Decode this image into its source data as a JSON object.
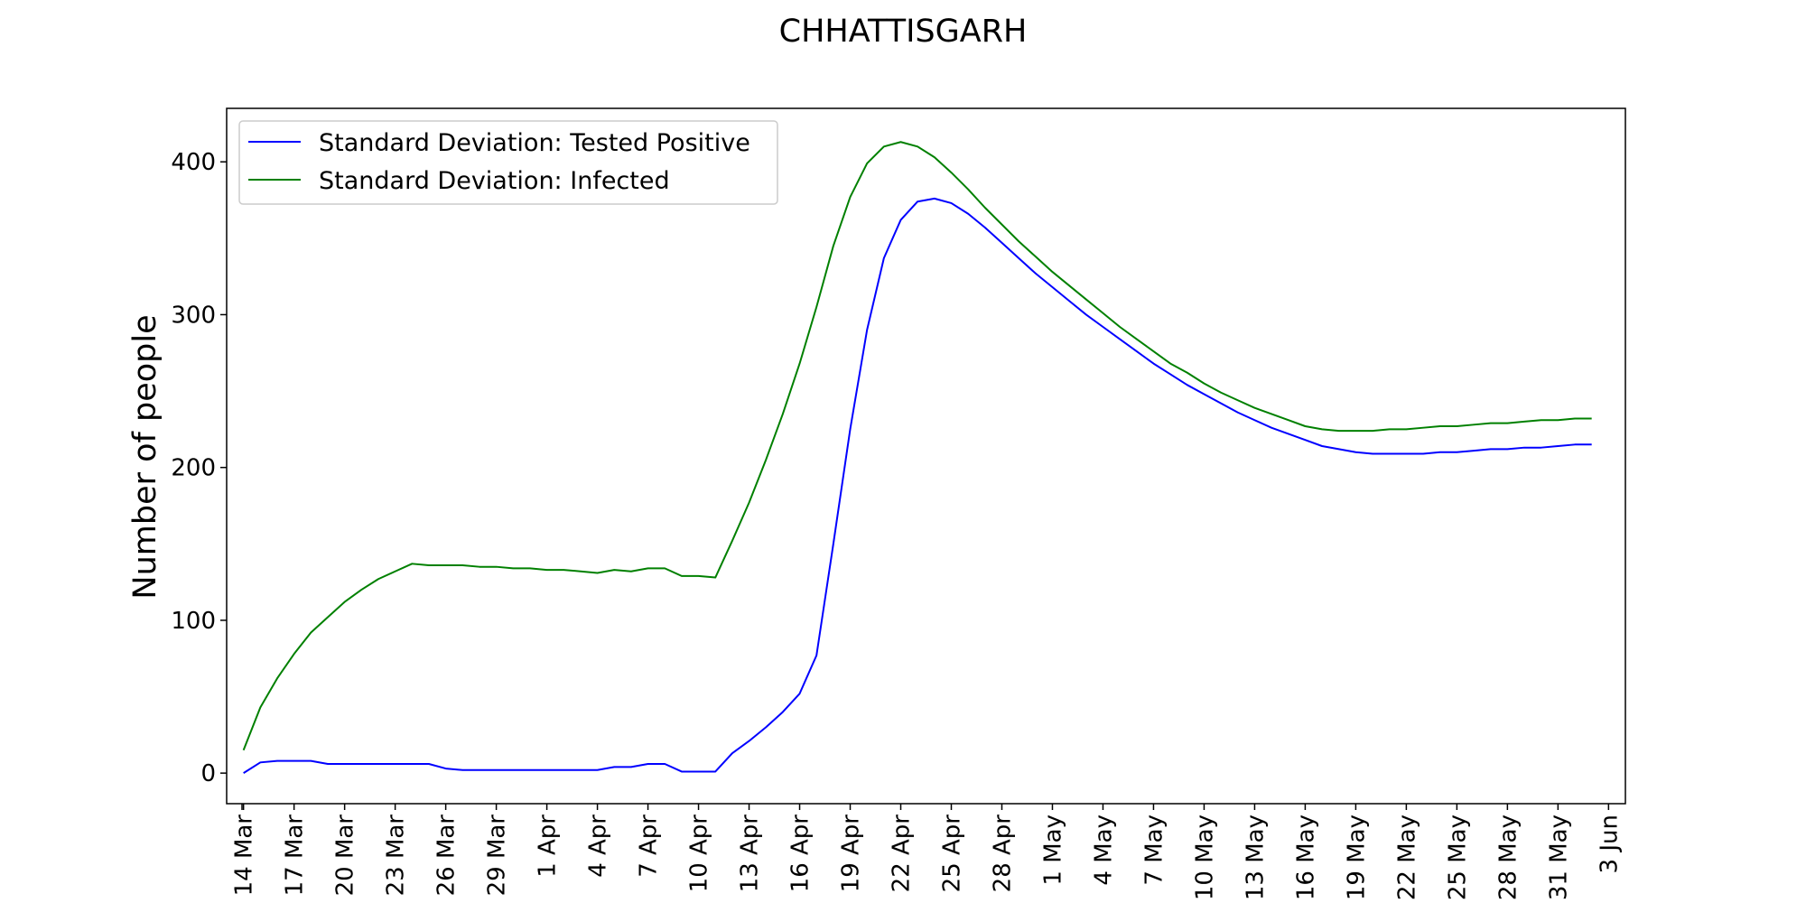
{
  "chart_data": {
    "type": "line",
    "title": "CHHATTISGARH",
    "xlabel": "",
    "ylabel": "Number of people",
    "x_start": "13 Mar",
    "x_end": "4 Jun",
    "ylim": [
      -20,
      435
    ],
    "grid": false,
    "legend_position": "top-left",
    "x_ticks": [
      "14 Mar",
      "17 Mar",
      "20 Mar",
      "23 Mar",
      "26 Mar",
      "29 Mar",
      "1 Apr",
      "4 Apr",
      "7 Apr",
      "10 Apr",
      "13 Apr",
      "16 Apr",
      "19 Apr",
      "22 Apr",
      "25 Apr",
      "28 Apr",
      "1 May",
      "4 May",
      "7 May",
      "10 May",
      "13 May",
      "16 May",
      "19 May",
      "22 May",
      "25 May",
      "28 May",
      "31 May",
      "3 Jun"
    ],
    "y_ticks": [
      0,
      100,
      200,
      300,
      400
    ],
    "series": [
      {
        "name": "Standard Deviation: Tested Positive",
        "color": "#0000ff",
        "points": [
          [
            "14 Mar",
            0
          ],
          [
            "15 Mar",
            7
          ],
          [
            "16 Mar",
            8
          ],
          [
            "17 Mar",
            8
          ],
          [
            "18 Mar",
            8
          ],
          [
            "19 Mar",
            6
          ],
          [
            "20 Mar",
            6
          ],
          [
            "21 Mar",
            6
          ],
          [
            "22 Mar",
            6
          ],
          [
            "23 Mar",
            6
          ],
          [
            "24 Mar",
            6
          ],
          [
            "25 Mar",
            6
          ],
          [
            "26 Mar",
            3
          ],
          [
            "27 Mar",
            2
          ],
          [
            "28 Mar",
            2
          ],
          [
            "29 Mar",
            2
          ],
          [
            "30 Mar",
            2
          ],
          [
            "31 Mar",
            2
          ],
          [
            "1 Apr",
            2
          ],
          [
            "2 Apr",
            2
          ],
          [
            "3 Apr",
            2
          ],
          [
            "4 Apr",
            2
          ],
          [
            "5 Apr",
            4
          ],
          [
            "6 Apr",
            4
          ],
          [
            "7 Apr",
            6
          ],
          [
            "8 Apr",
            6
          ],
          [
            "9 Apr",
            1
          ],
          [
            "10 Apr",
            1
          ],
          [
            "11 Apr",
            1
          ],
          [
            "12 Apr",
            13
          ],
          [
            "13 Apr",
            21
          ],
          [
            "14 Apr",
            30
          ],
          [
            "15 Apr",
            40
          ],
          [
            "16 Apr",
            52
          ],
          [
            "17 Apr",
            77
          ],
          [
            "18 Apr",
            150
          ],
          [
            "19 Apr",
            225
          ],
          [
            "20 Apr",
            290
          ],
          [
            "21 Apr",
            337
          ],
          [
            "22 Apr",
            362
          ],
          [
            "23 Apr",
            374
          ],
          [
            "24 Apr",
            376
          ],
          [
            "25 Apr",
            373
          ],
          [
            "26 Apr",
            366
          ],
          [
            "27 Apr",
            357
          ],
          [
            "28 Apr",
            347
          ],
          [
            "29 Apr",
            337
          ],
          [
            "30 Apr",
            327
          ],
          [
            "1 May",
            318
          ],
          [
            "2 May",
            309
          ],
          [
            "3 May",
            300
          ],
          [
            "4 May",
            292
          ],
          [
            "5 May",
            284
          ],
          [
            "6 May",
            276
          ],
          [
            "7 May",
            268
          ],
          [
            "8 May",
            261
          ],
          [
            "9 May",
            254
          ],
          [
            "10 May",
            248
          ],
          [
            "11 May",
            242
          ],
          [
            "12 May",
            236
          ],
          [
            "13 May",
            231
          ],
          [
            "14 May",
            226
          ],
          [
            "15 May",
            222
          ],
          [
            "16 May",
            218
          ],
          [
            "17 May",
            214
          ],
          [
            "18 May",
            212
          ],
          [
            "19 May",
            210
          ],
          [
            "20 May",
            209
          ],
          [
            "21 May",
            209
          ],
          [
            "22 May",
            209
          ],
          [
            "23 May",
            209
          ],
          [
            "24 May",
            210
          ],
          [
            "25 May",
            210
          ],
          [
            "26 May",
            211
          ],
          [
            "27 May",
            212
          ],
          [
            "28 May",
            212
          ],
          [
            "29 May",
            213
          ],
          [
            "30 May",
            213
          ],
          [
            "31 May",
            214
          ],
          [
            "1 Jun",
            215
          ],
          [
            "2 Jun",
            215
          ]
        ]
      },
      {
        "name": "Standard Deviation: Infected",
        "color": "#008000",
        "points": [
          [
            "14 Mar",
            15
          ],
          [
            "15 Mar",
            43
          ],
          [
            "16 Mar",
            62
          ],
          [
            "17 Mar",
            78
          ],
          [
            "18 Mar",
            92
          ],
          [
            "19 Mar",
            102
          ],
          [
            "20 Mar",
            112
          ],
          [
            "21 Mar",
            120
          ],
          [
            "22 Mar",
            127
          ],
          [
            "23 Mar",
            132
          ],
          [
            "24 Mar",
            137
          ],
          [
            "25 Mar",
            136
          ],
          [
            "26 Mar",
            136
          ],
          [
            "27 Mar",
            136
          ],
          [
            "28 Mar",
            135
          ],
          [
            "29 Mar",
            135
          ],
          [
            "30 Mar",
            134
          ],
          [
            "31 Mar",
            134
          ],
          [
            "1 Apr",
            133
          ],
          [
            "2 Apr",
            133
          ],
          [
            "3 Apr",
            132
          ],
          [
            "4 Apr",
            131
          ],
          [
            "5 Apr",
            133
          ],
          [
            "6 Apr",
            132
          ],
          [
            "7 Apr",
            134
          ],
          [
            "8 Apr",
            134
          ],
          [
            "9 Apr",
            129
          ],
          [
            "10 Apr",
            129
          ],
          [
            "11 Apr",
            128
          ],
          [
            "12 Apr",
            152
          ],
          [
            "13 Apr",
            177
          ],
          [
            "14 Apr",
            205
          ],
          [
            "15 Apr",
            235
          ],
          [
            "16 Apr",
            268
          ],
          [
            "17 Apr",
            305
          ],
          [
            "18 Apr",
            345
          ],
          [
            "19 Apr",
            377
          ],
          [
            "20 Apr",
            399
          ],
          [
            "21 Apr",
            410
          ],
          [
            "22 Apr",
            413
          ],
          [
            "23 Apr",
            410
          ],
          [
            "24 Apr",
            403
          ],
          [
            "25 Apr",
            393
          ],
          [
            "26 Apr",
            382
          ],
          [
            "27 Apr",
            370
          ],
          [
            "28 Apr",
            359
          ],
          [
            "29 Apr",
            348
          ],
          [
            "30 Apr",
            338
          ],
          [
            "1 May",
            328
          ],
          [
            "2 May",
            319
          ],
          [
            "3 May",
            310
          ],
          [
            "4 May",
            301
          ],
          [
            "5 May",
            292
          ],
          [
            "6 May",
            284
          ],
          [
            "7 May",
            276
          ],
          [
            "8 May",
            268
          ],
          [
            "9 May",
            262
          ],
          [
            "10 May",
            255
          ],
          [
            "11 May",
            249
          ],
          [
            "12 May",
            244
          ],
          [
            "13 May",
            239
          ],
          [
            "14 May",
            235
          ],
          [
            "15 May",
            231
          ],
          [
            "16 May",
            227
          ],
          [
            "17 May",
            225
          ],
          [
            "18 May",
            224
          ],
          [
            "19 May",
            224
          ],
          [
            "20 May",
            224
          ],
          [
            "21 May",
            225
          ],
          [
            "22 May",
            225
          ],
          [
            "23 May",
            226
          ],
          [
            "24 May",
            227
          ],
          [
            "25 May",
            227
          ],
          [
            "26 May",
            228
          ],
          [
            "27 May",
            229
          ],
          [
            "28 May",
            229
          ],
          [
            "29 May",
            230
          ],
          [
            "30 May",
            231
          ],
          [
            "31 May",
            231
          ],
          [
            "1 Jun",
            232
          ],
          [
            "2 Jun",
            232
          ]
        ]
      }
    ]
  }
}
